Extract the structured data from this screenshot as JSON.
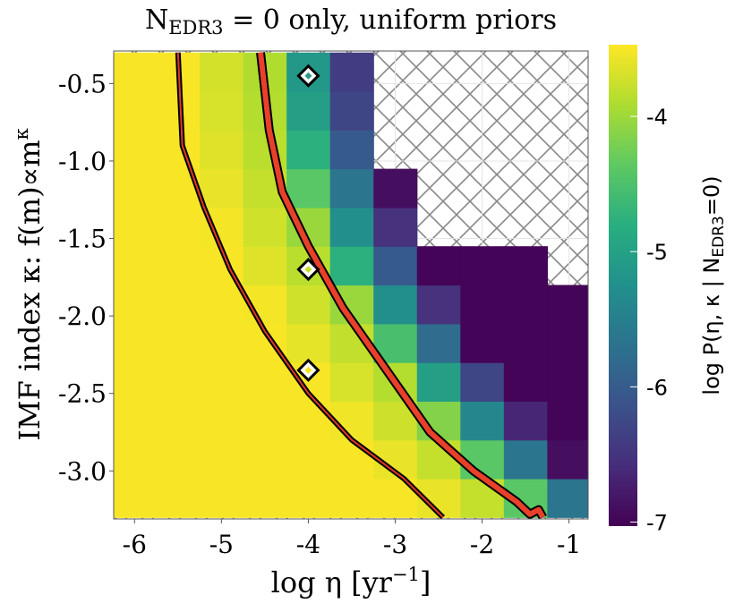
{
  "chart_data": {
    "type": "heatmap",
    "title": {
      "main": "N",
      "sub": "EDR3",
      "rest": " = 0 only, uniform priors"
    },
    "xlabel": {
      "main": "log η [yr",
      "sup": "−1",
      "rest": "]"
    },
    "ylabel": {
      "main": "IMF index κ: f(m)∝m",
      "sup": "κ"
    },
    "colorbar_label": {
      "main": "log P(η, κ | N",
      "sub": "EDR3",
      "rest": "=0)"
    },
    "x_edges": [
      -6.25,
      -5.75,
      -5.25,
      -4.75,
      -4.25,
      -3.75,
      -3.25,
      -2.75,
      -2.25,
      -1.75,
      -1.25,
      -0.75
    ],
    "y_edges": [
      -3.3,
      -3.05,
      -2.8,
      -2.55,
      -2.3,
      -2.05,
      -1.8,
      -1.55,
      -1.3,
      -1.05,
      -0.8,
      -0.55,
      -0.3
    ],
    "z": [
      [
        -3.5,
        -3.5,
        -3.5,
        -3.5,
        -3.5,
        -3.5,
        -3.5,
        -3.58,
        -3.78,
        -4.4,
        -5.65
      ],
      [
        -3.5,
        -3.5,
        -3.5,
        -3.5,
        -3.5,
        -3.5,
        -3.58,
        -3.78,
        -4.4,
        -5.65,
        -6.9
      ],
      [
        -3.5,
        -3.5,
        -3.5,
        -3.5,
        -3.5,
        -3.54,
        -3.74,
        -4.15,
        -5.4,
        -6.65,
        -7
      ],
      [
        -3.5,
        -3.5,
        -3.5,
        -3.5,
        -3.5,
        -3.68,
        -3.88,
        -5.03,
        -6.28,
        -7,
        -7
      ],
      [
        -3.5,
        -3.5,
        -3.5,
        -3.5,
        -3.6,
        -3.8,
        -4.53,
        -5.78,
        -7,
        -7,
        -7
      ],
      [
        -3.5,
        -3.5,
        -3.5,
        -3.52,
        -3.72,
        -4.03,
        -5.28,
        -6.53,
        -7,
        -7,
        -7
      ],
      [
        -3.5,
        -3.5,
        -3.5,
        -3.64,
        -3.84,
        -4.78,
        -6.03,
        -7,
        -7,
        -7,
        null
      ],
      [
        -3.5,
        -3.5,
        -3.52,
        -3.72,
        -4.03,
        -5.28,
        -6.53,
        null,
        null,
        null,
        null
      ],
      [
        -3.5,
        -3.5,
        -3.58,
        -3.78,
        -4.4,
        -5.65,
        -6.9,
        null,
        null,
        null,
        null
      ],
      [
        -3.5,
        -3.5,
        -3.64,
        -3.84,
        -4.78,
        -6.03,
        null,
        null,
        null,
        null,
        null
      ],
      [
        -3.5,
        -3.5,
        -3.68,
        -3.88,
        -5.03,
        -6.28,
        null,
        null,
        null,
        null,
        null
      ],
      [
        -3.5,
        -3.5,
        -3.7,
        -3.9,
        -5.15,
        -6.4,
        null,
        null,
        null,
        null,
        null
      ]
    ],
    "contours": [
      {
        "x": [
          -5.5,
          -5.45,
          -5.2,
          -4.9,
          -4.5,
          -4.0,
          -3.5,
          -2.9,
          -2.45
        ],
        "y": [
          -0.3,
          -0.9,
          -1.3,
          -1.7,
          -2.1,
          -2.5,
          -2.8,
          -3.05,
          -3.3
        ],
        "color": "#e0382b",
        "width": 2
      },
      {
        "x": [
          -4.55,
          -4.45,
          -4.3,
          -4.0,
          -3.6,
          -3.1,
          -2.6,
          -2.1,
          -1.6,
          -1.45,
          -1.35,
          -1.3
        ],
        "y": [
          -0.3,
          -0.8,
          -1.2,
          -1.55,
          -1.95,
          -2.35,
          -2.75,
          -3.0,
          -3.2,
          -3.28,
          -3.25,
          -3.3
        ],
        "color": "#e8402a",
        "width": 6
      }
    ],
    "markers": {
      "x": [
        -4,
        -4,
        -4
      ],
      "y": [
        -0.45,
        -1.7,
        -2.35
      ],
      "colors": [
        "#2a9a89",
        "#c5df2a",
        "#f3e51e"
      ]
    },
    "xlim": [
      -6.24,
      -0.78
    ],
    "ylim": [
      -3.31,
      -0.29
    ],
    "zlim": [
      -7.03,
      -3.47
    ],
    "xticks": [
      -6,
      -5,
      -4,
      -3,
      -2,
      -1
    ],
    "yticks": [
      -0.5,
      {
        "value": -1,
        "label": "-1.0"
      },
      -1.5,
      {
        "value": -2,
        "label": "-2.0"
      },
      -2.5,
      {
        "value": -3,
        "label": "-3.0"
      }
    ],
    "zticks": [
      -4,
      -5,
      -6,
      -7
    ],
    "grid": true
  }
}
